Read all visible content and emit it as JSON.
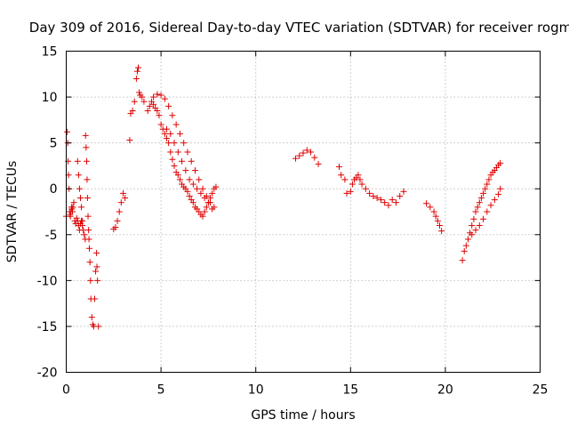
{
  "chart_data": {
    "type": "scatter",
    "title": "Day 309 of 2016, Sidereal Day-to-day VTEC variation (SDTVAR) for receiver rogm",
    "xlabel": "GPS time / hours",
    "ylabel": "SDTVAR / TECUs",
    "xlim": [
      0,
      25
    ],
    "ylim": [
      -20,
      15
    ],
    "xticks": [
      "0",
      "5",
      "10",
      "15",
      "20",
      "25"
    ],
    "yticks": [
      "-20",
      "-15",
      "-10",
      "-5",
      "0",
      "5",
      "10",
      "15"
    ],
    "grid": true,
    "marker": "+",
    "color": "#e00000",
    "series": [
      {
        "name": "SDTVAR",
        "x": [
          0.0,
          0.05,
          0.08,
          0.1,
          0.12,
          0.15,
          0.18,
          0.2,
          0.22,
          0.25,
          0.28,
          0.3,
          0.33,
          0.35,
          0.4,
          0.45,
          0.5,
          0.55,
          0.6,
          0.65,
          0.7,
          0.75,
          0.8,
          0.85,
          0.9,
          0.95,
          1.0,
          1.02,
          1.05,
          1.08,
          1.1,
          1.12,
          1.15,
          1.18,
          1.2,
          1.22,
          1.25,
          1.28,
          1.3,
          1.35,
          1.4,
          1.45,
          1.5,
          1.55,
          1.6,
          1.62,
          1.65,
          1.7,
          0.6,
          0.65,
          0.7,
          0.75,
          0.8,
          0.85,
          2.5,
          2.6,
          2.7,
          2.8,
          2.9,
          3.0,
          3.1,
          3.35,
          3.4,
          3.5,
          3.6,
          3.7,
          3.75,
          3.8,
          3.85,
          3.9,
          4.0,
          4.1,
          4.3,
          4.4,
          4.5,
          4.6,
          4.7,
          4.8,
          4.9,
          5.0,
          5.1,
          5.2,
          5.3,
          5.4,
          5.5,
          5.6,
          5.7,
          5.8,
          5.9,
          6.0,
          6.1,
          6.2,
          6.3,
          6.4,
          6.5,
          6.6,
          6.7,
          6.8,
          6.9,
          7.0,
          7.1,
          7.2,
          7.3,
          7.4,
          7.5,
          7.6,
          7.7,
          7.8,
          7.9,
          4.6,
          4.8,
          5.0,
          5.2,
          5.4,
          5.6,
          5.8,
          6.0,
          6.2,
          6.4,
          6.6,
          6.8,
          7.0,
          7.2,
          7.4,
          7.6,
          7.8,
          5.3,
          5.5,
          5.7,
          5.9,
          6.1,
          6.3,
          6.5,
          6.7,
          6.9,
          7.1,
          7.3,
          7.5,
          7.7,
          12.1,
          12.3,
          12.5,
          12.7,
          12.9,
          13.1,
          13.3,
          14.4,
          14.5,
          14.7,
          14.8,
          15.0,
          15.1,
          15.2,
          15.3,
          15.4,
          15.5,
          15.6,
          15.8,
          16.0,
          16.2,
          16.4,
          16.6,
          16.8,
          17.0,
          17.2,
          17.4,
          17.6,
          17.8,
          19.0,
          19.2,
          19.4,
          19.5,
          19.6,
          19.7,
          19.8,
          20.9,
          21.0,
          21.1,
          21.2,
          21.3,
          21.4,
          21.5,
          21.6,
          21.7,
          21.8,
          21.9,
          22.0,
          22.1,
          22.2,
          22.3,
          22.4,
          22.5,
          22.6,
          22.7,
          22.8,
          22.9,
          21.4,
          21.6,
          21.8,
          22.0,
          22.2,
          22.4,
          22.6,
          22.8,
          22.9
        ],
        "y": [
          -3.0,
          6.2,
          5.0,
          3.0,
          1.5,
          0.0,
          -2.5,
          -2.8,
          -3.0,
          -2.5,
          -2.0,
          -2.2,
          -2.5,
          -2.0,
          -1.5,
          -3.5,
          -3.8,
          -3.2,
          -3.5,
          -4.0,
          -4.5,
          -3.8,
          -3.5,
          -4.0,
          -4.5,
          -5.0,
          -5.5,
          5.8,
          4.5,
          3.0,
          1.0,
          -1.0,
          -3.0,
          -4.5,
          -5.5,
          -6.5,
          -8.0,
          -10.0,
          -12.0,
          -14.0,
          -14.8,
          -15.0,
          -12.0,
          -9.0,
          -7.0,
          -8.5,
          -10.0,
          -15.0,
          3.0,
          1.5,
          0.0,
          -1.0,
          -2.0,
          -3.5,
          -4.4,
          -4.2,
          -3.5,
          -2.5,
          -1.5,
          -0.5,
          -1.0,
          5.3,
          8.2,
          8.5,
          9.5,
          12.0,
          12.8,
          13.2,
          10.5,
          10.2,
          10.0,
          9.5,
          8.5,
          9.0,
          9.5,
          9.2,
          8.8,
          8.5,
          8.0,
          7.0,
          6.5,
          6.0,
          5.5,
          5.0,
          4.0,
          3.2,
          2.5,
          1.8,
          1.5,
          1.0,
          0.5,
          0.2,
          0.0,
          -0.3,
          -0.8,
          -1.2,
          -1.5,
          -2.0,
          -2.2,
          -2.5,
          -2.8,
          -3.0,
          -2.5,
          -2.0,
          -1.5,
          -1.0,
          -0.5,
          0.0,
          0.2,
          10.0,
          10.3,
          10.2,
          9.8,
          9.0,
          8.0,
          7.0,
          6.0,
          5.0,
          4.0,
          3.0,
          2.0,
          1.0,
          0.0,
          -0.8,
          -1.5,
          -2.0,
          6.5,
          6.0,
          5.0,
          4.0,
          3.0,
          2.0,
          1.0,
          0.5,
          0.0,
          -0.5,
          -1.0,
          -1.5,
          -2.2,
          3.3,
          3.6,
          3.9,
          4.2,
          4.0,
          3.4,
          2.7,
          2.4,
          1.5,
          1.0,
          -0.5,
          -0.3,
          0.5,
          1.0,
          1.2,
          1.5,
          1.0,
          0.5,
          0.0,
          -0.5,
          -0.8,
          -1.0,
          -1.2,
          -1.5,
          -1.8,
          -1.2,
          -1.5,
          -0.8,
          -0.3,
          -1.6,
          -2.0,
          -2.5,
          -3.0,
          -3.5,
          -4.0,
          -4.6,
          -7.8,
          -6.8,
          -6.2,
          -5.5,
          -4.8,
          -4.0,
          -3.3,
          -2.5,
          -2.0,
          -1.5,
          -1.0,
          -0.5,
          0.0,
          0.5,
          1.0,
          1.5,
          1.8,
          2.0,
          2.3,
          2.6,
          2.8,
          -5.0,
          -4.5,
          -4.0,
          -3.3,
          -2.5,
          -1.8,
          -1.2,
          -0.6,
          0.0
        ]
      }
    ]
  }
}
